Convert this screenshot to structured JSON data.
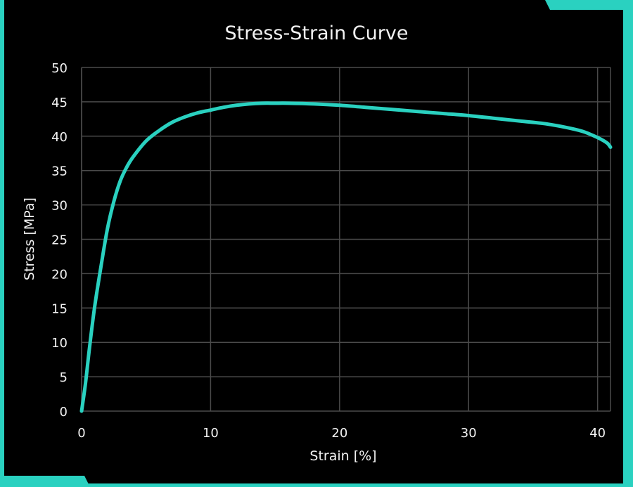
{
  "accent": "#2ad1c0",
  "chart_data": {
    "type": "line",
    "title": "Stress-Strain Curve",
    "xlabel": "Strain [%]",
    "ylabel": "Stress [MPa]",
    "xlim": [
      0,
      41
    ],
    "ylim": [
      0,
      50
    ],
    "xticks": [
      0,
      10,
      20,
      30,
      40
    ],
    "yticks": [
      0,
      5,
      10,
      15,
      20,
      25,
      30,
      35,
      40,
      45,
      50
    ],
    "grid": true,
    "series": [
      {
        "color": "#2ad1c0",
        "x": [
          0,
          0.3,
          0.6,
          1.0,
          1.5,
          2.0,
          2.5,
          3.0,
          3.5,
          4.0,
          5.0,
          6.0,
          7.0,
          8.0,
          9.0,
          10.0,
          11.0,
          12.0,
          13.0,
          14.0,
          15.0,
          16.0,
          18.0,
          20.0,
          22.0,
          24.0,
          26.0,
          28.0,
          30.0,
          32.0,
          34.0,
          36.0,
          38.0,
          39.0,
          40.0,
          40.5,
          40.8,
          41.0
        ],
        "y": [
          0,
          4,
          9,
          15,
          21,
          26.5,
          30.5,
          33.5,
          35.5,
          37.0,
          39.3,
          40.8,
          42.0,
          42.8,
          43.4,
          43.8,
          44.2,
          44.5,
          44.7,
          44.8,
          44.8,
          44.8,
          44.7,
          44.5,
          44.2,
          43.9,
          43.6,
          43.3,
          43.0,
          42.6,
          42.2,
          41.8,
          41.1,
          40.6,
          39.8,
          39.3,
          38.9,
          38.4
        ]
      }
    ]
  }
}
